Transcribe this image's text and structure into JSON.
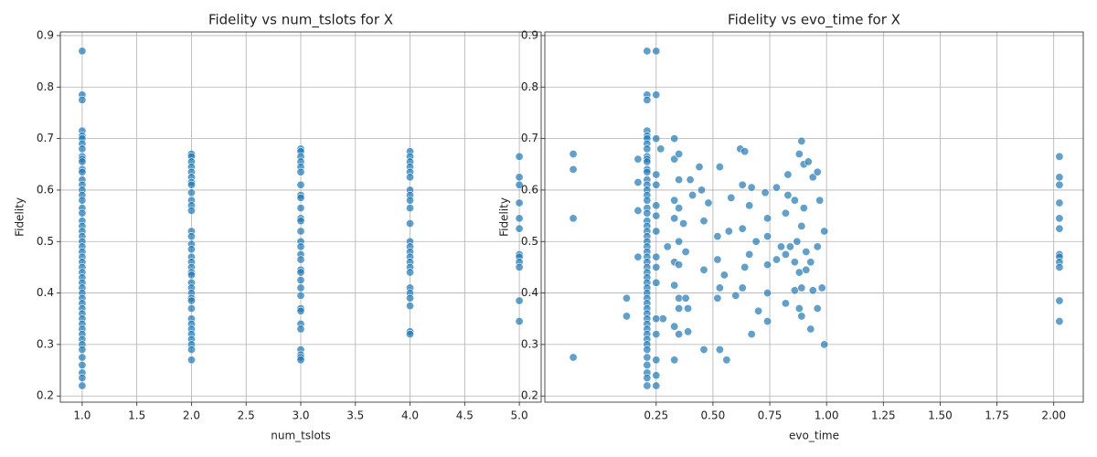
{
  "chart_data": [
    {
      "type": "scatter",
      "title": "Fidelity vs num_tslots for X",
      "x_label": "num_tslots",
      "y_label": "Fidelity",
      "grid": true,
      "series": [
        {
          "color": "#1f77b4",
          "x": [
            1,
            1,
            1,
            1,
            1,
            1,
            1,
            1,
            1,
            1,
            1,
            1,
            1,
            1,
            1,
            1,
            1,
            1,
            1,
            1,
            1,
            1,
            1,
            1,
            1,
            1,
            1,
            1,
            1,
            1,
            1,
            1,
            1,
            1,
            1,
            1,
            1,
            1,
            1,
            1,
            1,
            1,
            1,
            1,
            1,
            1,
            1,
            1,
            1,
            1,
            1,
            2,
            2,
            2,
            2,
            2,
            2,
            2,
            2,
            2,
            2,
            2,
            2,
            2,
            2,
            2,
            2,
            2,
            2,
            2,
            2,
            2,
            2,
            2,
            2,
            2,
            2,
            2,
            2,
            2,
            2,
            2,
            2,
            2,
            2,
            2,
            3,
            3,
            3,
            3,
            3,
            3,
            3,
            3,
            3,
            3,
            3,
            3,
            3,
            3,
            3,
            3,
            3,
            3,
            3,
            3,
            3,
            3,
            3,
            3,
            3,
            3,
            3,
            3,
            3,
            3,
            4,
            4,
            4,
            4,
            4,
            4,
            4,
            4,
            4,
            4,
            4,
            4,
            4,
            4,
            4,
            4,
            4,
            4,
            4,
            4,
            4,
            4,
            4,
            4,
            5,
            5,
            5,
            5,
            5,
            5,
            5,
            5,
            5,
            5,
            5,
            5
          ],
          "values": [
            0.87,
            0.785,
            0.775,
            0.715,
            0.705,
            0.7,
            0.69,
            0.68,
            0.665,
            0.66,
            0.655,
            0.64,
            0.635,
            0.62,
            0.61,
            0.6,
            0.59,
            0.58,
            0.565,
            0.555,
            0.54,
            0.53,
            0.52,
            0.51,
            0.5,
            0.49,
            0.48,
            0.47,
            0.46,
            0.45,
            0.44,
            0.43,
            0.42,
            0.41,
            0.4,
            0.39,
            0.38,
            0.37,
            0.36,
            0.35,
            0.34,
            0.33,
            0.32,
            0.31,
            0.3,
            0.29,
            0.275,
            0.26,
            0.245,
            0.235,
            0.22,
            0.67,
            0.665,
            0.655,
            0.645,
            0.635,
            0.625,
            0.615,
            0.61,
            0.595,
            0.58,
            0.57,
            0.56,
            0.52,
            0.51,
            0.495,
            0.485,
            0.47,
            0.46,
            0.45,
            0.44,
            0.435,
            0.42,
            0.41,
            0.4,
            0.39,
            0.385,
            0.37,
            0.35,
            0.34,
            0.33,
            0.32,
            0.31,
            0.3,
            0.29,
            0.27,
            0.68,
            0.675,
            0.665,
            0.655,
            0.645,
            0.635,
            0.61,
            0.59,
            0.585,
            0.565,
            0.545,
            0.54,
            0.52,
            0.5,
            0.49,
            0.475,
            0.465,
            0.445,
            0.44,
            0.425,
            0.41,
            0.395,
            0.37,
            0.365,
            0.34,
            0.33,
            0.29,
            0.28,
            0.275,
            0.27,
            0.675,
            0.665,
            0.655,
            0.645,
            0.635,
            0.625,
            0.6,
            0.59,
            0.58,
            0.565,
            0.535,
            0.5,
            0.49,
            0.48,
            0.47,
            0.46,
            0.45,
            0.44,
            0.41,
            0.4,
            0.39,
            0.375,
            0.325,
            0.32,
            0.665,
            0.625,
            0.61,
            0.575,
            0.545,
            0.525,
            0.475,
            0.47,
            0.46,
            0.45,
            0.385,
            0.345
          ]
        }
      ],
      "xlim": [
        0.8,
        5.2
      ],
      "ylim": [
        0.188,
        0.907
      ],
      "xticks": [
        {
          "value": 1,
          "label": "1.0"
        },
        1.5,
        {
          "value": 2,
          "label": "2.0"
        },
        2.5,
        {
          "value": 3,
          "label": "3.0"
        },
        3.5,
        {
          "value": 4,
          "label": "4.0"
        },
        4.5,
        {
          "value": 5,
          "label": "5.0"
        }
      ],
      "yticks": [
        0.2,
        0.3,
        0.4,
        0.5,
        0.6,
        0.7,
        0.8,
        0.9
      ]
    },
    {
      "type": "scatter",
      "title": "Fidelity vs evo_time for X",
      "x_label": "evo_time",
      "y_label": "Fidelity",
      "grid": true,
      "series": [
        {
          "color": "#1f77b4",
          "x": [
            -0.115,
            -0.115,
            -0.115,
            -0.115,
            0.12,
            0.12,
            0.17,
            0.17,
            0.17,
            0.17,
            0.27,
            0.28,
            0.3,
            0.33,
            0.33,
            0.33,
            0.33,
            0.33,
            0.33,
            0.33,
            0.33,
            0.35,
            0.35,
            0.35,
            0.35,
            0.35,
            0.35,
            0.35,
            0.35,
            0.37,
            0.38,
            0.38,
            0.39,
            0.39,
            0.4,
            0.41,
            0.44,
            0.45,
            0.46,
            0.46,
            0.46,
            0.48,
            0.52,
            0.52,
            0.52,
            0.53,
            0.53,
            0.53,
            0.55,
            0.56,
            0.57,
            0.58,
            0.6,
            0.62,
            0.63,
            0.63,
            0.63,
            0.64,
            0.64,
            0.66,
            0.66,
            0.67,
            0.67,
            0.69,
            0.7,
            0.73,
            0.74,
            0.74,
            0.74,
            0.74,
            0.74,
            0.78,
            0.78,
            0.8,
            0.82,
            0.82,
            0.82,
            0.83,
            0.83,
            0.84,
            0.86,
            0.86,
            0.86,
            0.87,
            0.88,
            0.88,
            0.88,
            0.89,
            0.89,
            0.89,
            0.89,
            0.9,
            0.9,
            0.91,
            0.91,
            0.92,
            0.93,
            0.93,
            0.94,
            0.94,
            0.96,
            0.96,
            0.96,
            0.97,
            0.98,
            0.99,
            0.99,
            0.21,
            0.21,
            0.21,
            0.21,
            0.21,
            0.21,
            0.21,
            0.21,
            0.21,
            0.21,
            0.21,
            0.21,
            0.21,
            0.21,
            0.21,
            0.21,
            0.21,
            0.21,
            0.21,
            0.21,
            0.21,
            0.21,
            0.21,
            0.21,
            0.21,
            0.21,
            0.21,
            0.21,
            0.21,
            0.21,
            0.21,
            0.21,
            0.21,
            0.21,
            0.21,
            0.21,
            0.21,
            0.21,
            0.21,
            0.21,
            0.21,
            0.21,
            0.21,
            0.21,
            0.21,
            0.21,
            0.21,
            0.21,
            0.21,
            0.21,
            0.21,
            0.25,
            0.25,
            0.25,
            0.25,
            0.25,
            0.25,
            0.25,
            0.25,
            0.25,
            0.25,
            0.25,
            0.25,
            0.25,
            0.25,
            0.25,
            0.25,
            2.025,
            2.025,
            2.025,
            2.025,
            2.025,
            2.025,
            2.025,
            2.025,
            2.025,
            2.025,
            2.025,
            2.025
          ],
          "values": [
            0.67,
            0.64,
            0.545,
            0.275,
            0.39,
            0.355,
            0.66,
            0.615,
            0.56,
            0.47,
            0.68,
            0.35,
            0.49,
            0.7,
            0.66,
            0.58,
            0.545,
            0.46,
            0.415,
            0.335,
            0.27,
            0.67,
            0.62,
            0.565,
            0.5,
            0.455,
            0.39,
            0.37,
            0.32,
            0.535,
            0.48,
            0.39,
            0.37,
            0.325,
            0.62,
            0.59,
            0.645,
            0.6,
            0.54,
            0.445,
            0.29,
            0.575,
            0.51,
            0.465,
            0.39,
            0.645,
            0.41,
            0.29,
            0.435,
            0.27,
            0.52,
            0.585,
            0.395,
            0.68,
            0.61,
            0.525,
            0.41,
            0.675,
            0.45,
            0.57,
            0.475,
            0.605,
            0.32,
            0.5,
            0.365,
            0.595,
            0.545,
            0.51,
            0.455,
            0.4,
            0.345,
            0.605,
            0.465,
            0.49,
            0.38,
            0.475,
            0.555,
            0.63,
            0.59,
            0.49,
            0.58,
            0.46,
            0.405,
            0.5,
            0.67,
            0.44,
            0.37,
            0.695,
            0.53,
            0.41,
            0.355,
            0.65,
            0.565,
            0.48,
            0.445,
            0.655,
            0.46,
            0.33,
            0.625,
            0.405,
            0.635,
            0.49,
            0.37,
            0.58,
            0.41,
            0.52,
            0.3,
            0.87,
            0.785,
            0.775,
            0.715,
            0.705,
            0.7,
            0.69,
            0.68,
            0.665,
            0.66,
            0.655,
            0.64,
            0.635,
            0.62,
            0.61,
            0.6,
            0.59,
            0.58,
            0.565,
            0.555,
            0.54,
            0.53,
            0.52,
            0.51,
            0.5,
            0.49,
            0.48,
            0.47,
            0.46,
            0.45,
            0.44,
            0.43,
            0.42,
            0.41,
            0.4,
            0.39,
            0.38,
            0.37,
            0.36,
            0.35,
            0.34,
            0.33,
            0.32,
            0.31,
            0.3,
            0.29,
            0.275,
            0.26,
            0.245,
            0.235,
            0.22,
            0.87,
            0.785,
            0.7,
            0.63,
            0.61,
            0.57,
            0.55,
            0.52,
            0.47,
            0.45,
            0.42,
            0.35,
            0.32,
            0.27,
            0.24,
            0.22,
            0.665,
            0.625,
            0.61,
            0.575,
            0.545,
            0.525,
            0.475,
            0.47,
            0.46,
            0.45,
            0.385,
            0.345
          ]
        }
      ],
      "xlim": [
        -0.24,
        2.13
      ],
      "ylim": [
        0.188,
        0.907
      ],
      "xticks": [
        0.25,
        {
          "value": 0.5,
          "label": "0.50"
        },
        0.75,
        {
          "value": 1,
          "label": "1.00"
        },
        1.25,
        {
          "value": 1.5,
          "label": "1.50"
        },
        1.75,
        {
          "value": 2,
          "label": "2.00"
        }
      ],
      "yticks": [
        0.2,
        0.3,
        0.4,
        0.5,
        0.6,
        0.7,
        0.8,
        0.9
      ]
    }
  ]
}
